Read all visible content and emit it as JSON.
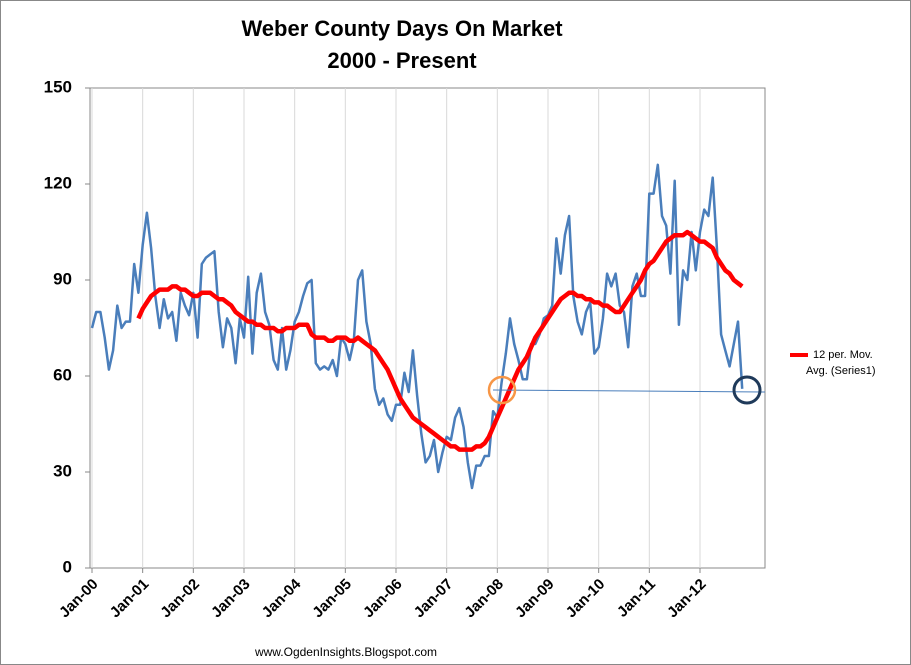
{
  "chart_data": {
    "type": "line",
    "title": "Weber County Days On Market",
    "subtitle": "2000 - Present",
    "footer": "www.OgdenInsights.Blogspot.com",
    "categories": [
      "Jan-00",
      null,
      null,
      null,
      null,
      null,
      null,
      null,
      null,
      null,
      null,
      null,
      "Jan-01",
      null,
      null,
      null,
      null,
      null,
      null,
      null,
      null,
      null,
      null,
      null,
      "Jan-02",
      null,
      null,
      null,
      null,
      null,
      null,
      null,
      null,
      null,
      null,
      null,
      "Jan-03",
      null,
      null,
      null,
      null,
      null,
      null,
      null,
      null,
      null,
      null,
      null,
      "Jan-04",
      null,
      null,
      null,
      null,
      null,
      null,
      null,
      null,
      null,
      null,
      null,
      "Jan-05",
      null,
      null,
      null,
      null,
      null,
      null,
      null,
      null,
      null,
      null,
      null,
      "Jan-06",
      null,
      null,
      null,
      null,
      null,
      null,
      null,
      null,
      null,
      null,
      null,
      "Jan-07",
      null,
      null,
      null,
      null,
      null,
      null,
      null,
      null,
      null,
      null,
      null,
      "Jan-08",
      null,
      null,
      null,
      null,
      null,
      null,
      null,
      null,
      null,
      null,
      null,
      "Jan-09",
      null,
      null,
      null,
      null,
      null,
      null,
      null,
      null,
      null,
      null,
      null,
      "Jan-10",
      null,
      null,
      null,
      null,
      null,
      null,
      null,
      null,
      null,
      null,
      null,
      "Jan-11",
      null,
      null,
      null,
      null,
      null,
      null,
      null,
      null,
      null,
      null,
      null,
      "Jan-12",
      null,
      null,
      null,
      null,
      null,
      null,
      null,
      null,
      null,
      null
    ],
    "series": [
      {
        "color": "#4a7ebb",
        "width": 2.5,
        "values": [
          75,
          80,
          80,
          72,
          62,
          68,
          82,
          75,
          77,
          77,
          95,
          86,
          101,
          111,
          100,
          85,
          75,
          84,
          78,
          80,
          71,
          86,
          82,
          79,
          86,
          72,
          95,
          97,
          98,
          99,
          80,
          69,
          78,
          75,
          64,
          78,
          72,
          91,
          67,
          86,
          92,
          80,
          76,
          65,
          62,
          75,
          62,
          68,
          77,
          80,
          85,
          89,
          90,
          64,
          62,
          63,
          62,
          65,
          60,
          72,
          70,
          65,
          71,
          90,
          93,
          77,
          70,
          56,
          51,
          53,
          48,
          46,
          51,
          51,
          61,
          55,
          68,
          54,
          42,
          33,
          35,
          40,
          30,
          36,
          41,
          40,
          47,
          50,
          44,
          33,
          25,
          32,
          32,
          35,
          35,
          49,
          47,
          58,
          67,
          78,
          70,
          65,
          59,
          59,
          70,
          70,
          73,
          78,
          79,
          82,
          103,
          92,
          104,
          110,
          85,
          77,
          73,
          80,
          83,
          67,
          69,
          78,
          92,
          88,
          92,
          82,
          80,
          69,
          88,
          92,
          85,
          85,
          117,
          117,
          126,
          110,
          107,
          92,
          121,
          76,
          93,
          90,
          105,
          93,
          105,
          112,
          110,
          122,
          100,
          73,
          68,
          63,
          70,
          77,
          56
        ]
      },
      {
        "name": "12 per. Mov. Avg. (Series1)",
        "color": "#ff0000",
        "width": 4.5,
        "values": [
          null,
          null,
          null,
          null,
          null,
          null,
          null,
          null,
          null,
          null,
          null,
          78,
          81,
          83,
          85,
          86,
          87,
          87,
          87,
          88,
          88,
          87,
          87,
          86,
          85,
          85,
          86,
          86,
          86,
          85,
          84,
          84,
          83,
          82,
          80,
          79,
          78,
          77,
          77,
          76,
          76,
          75,
          75,
          75,
          74,
          74,
          75,
          75,
          75,
          76,
          76,
          76,
          73,
          72,
          72,
          72,
          71,
          71,
          72,
          72,
          72,
          71,
          71,
          72,
          71,
          70,
          69,
          68,
          66,
          64,
          62,
          59,
          56,
          53,
          51,
          49,
          47,
          46,
          45,
          44,
          43,
          42,
          41,
          40,
          39,
          38,
          38,
          37,
          37,
          37,
          37,
          38,
          38,
          39,
          41,
          44,
          47,
          50,
          53,
          56,
          59,
          62,
          64,
          66,
          69,
          72,
          74,
          76,
          78,
          80,
          82,
          84,
          85,
          86,
          86,
          85,
          85,
          84,
          84,
          83,
          83,
          82,
          82,
          81,
          80,
          80,
          82,
          84,
          86,
          88,
          90,
          93,
          95,
          96,
          98,
          100,
          102,
          103,
          104,
          104,
          104,
          105,
          104,
          103,
          102,
          102,
          101,
          100,
          97,
          95,
          93,
          92,
          90,
          89,
          88
        ]
      }
    ],
    "ylim": [
      0,
      150
    ],
    "yticks": [
      0,
      30,
      60,
      90,
      120,
      150
    ],
    "xgrid": true,
    "legend": "right"
  }
}
